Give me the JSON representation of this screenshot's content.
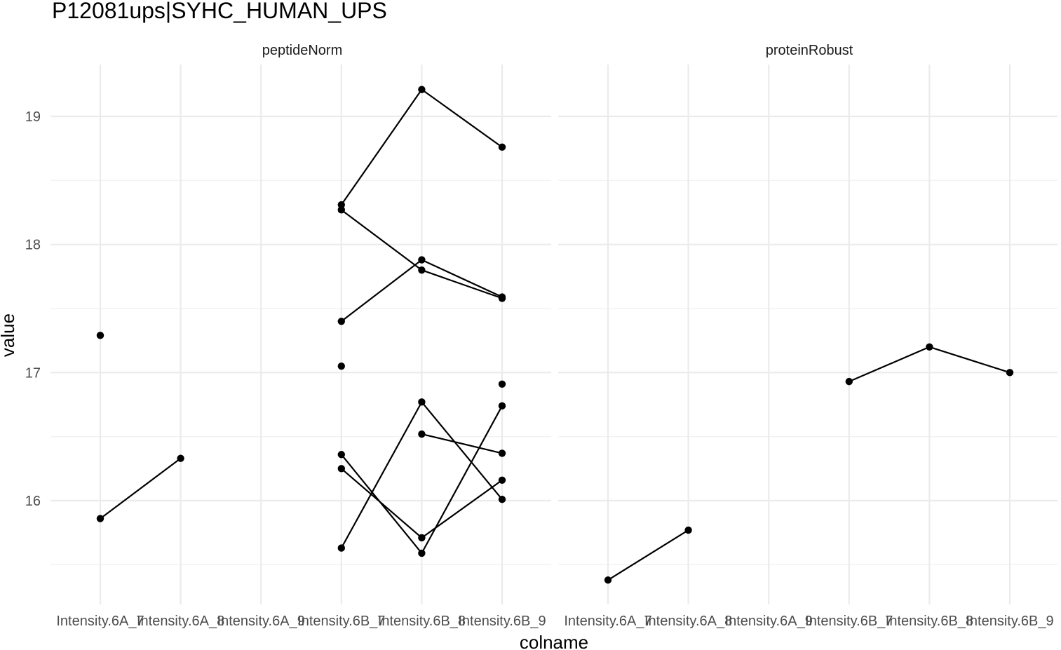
{
  "chart_data": {
    "type": "line",
    "title": "P12081ups|SYHC_HUMAN_UPS",
    "xlabel": "colname",
    "ylabel": "value",
    "categories": [
      "Intensity.6A_7",
      "Intensity.6A_8",
      "Intensity.6A_9",
      "Intensity.6B_7",
      "Intensity.6B_8",
      "Intensity.6B_9"
    ],
    "ylim": [
      15.3,
      19.4
    ],
    "y_ticks": [
      16,
      17,
      18,
      19
    ],
    "grid": true,
    "panels": [
      {
        "name": "peptideNorm",
        "series": [
          {
            "values": [
              15.86,
              16.33,
              null,
              null,
              null,
              null
            ]
          },
          {
            "values": [
              17.29,
              null,
              null,
              null,
              null,
              null
            ]
          },
          {
            "values": [
              null,
              null,
              null,
              18.31,
              19.21,
              18.76
            ]
          },
          {
            "values": [
              null,
              null,
              null,
              18.27,
              17.8,
              17.58
            ]
          },
          {
            "values": [
              null,
              null,
              null,
              17.4,
              17.88,
              17.59
            ]
          },
          {
            "values": [
              null,
              null,
              null,
              17.05,
              null,
              null
            ]
          },
          {
            "values": [
              null,
              null,
              null,
              null,
              null,
              16.91
            ]
          },
          {
            "values": [
              null,
              null,
              null,
              15.63,
              16.77,
              16.01
            ]
          },
          {
            "values": [
              null,
              null,
              null,
              16.36,
              15.59,
              16.74
            ]
          },
          {
            "values": [
              null,
              null,
              null,
              16.25,
              15.71,
              16.16
            ]
          },
          {
            "values": [
              null,
              null,
              null,
              null,
              16.52,
              16.37
            ]
          }
        ]
      },
      {
        "name": "proteinRobust",
        "series": [
          {
            "values": [
              15.38,
              15.77,
              null,
              null,
              null,
              null
            ]
          },
          {
            "values": [
              null,
              null,
              null,
              16.93,
              17.2,
              17.0
            ]
          }
        ]
      }
    ]
  }
}
